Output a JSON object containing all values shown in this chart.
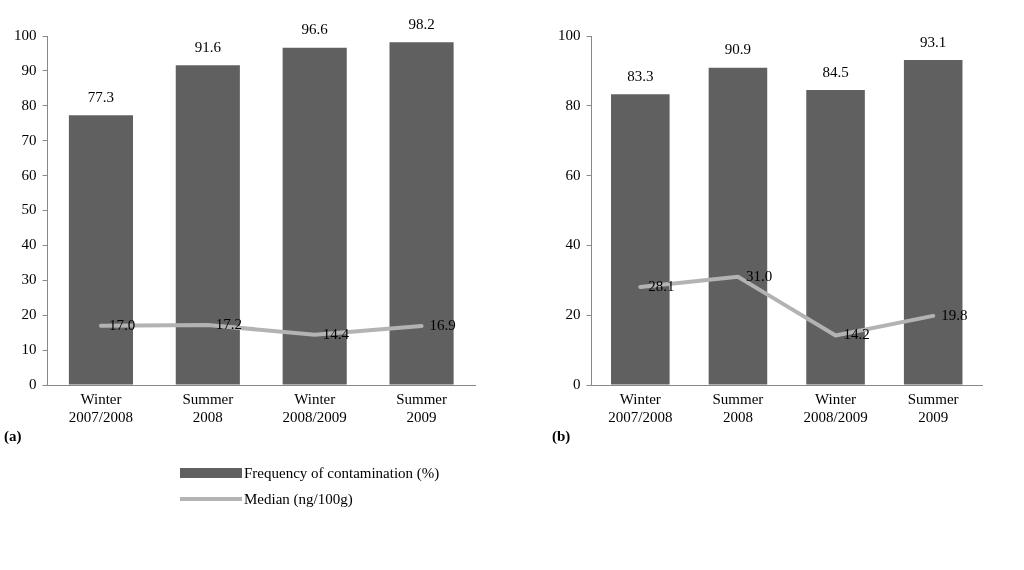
{
  "chart_data": [
    {
      "type": "bar",
      "annotations": [
        "(a)"
      ],
      "categories": [
        "Winter 2007/2008",
        "Summer 2008",
        "Winter 2008/2009",
        "Summer 2009"
      ],
      "series": [
        {
          "name": "Frequency of contamination (%)",
          "color": "#606060",
          "values": [
            77.3,
            91.6,
            96.6,
            98.2
          ],
          "value_labels": [
            "77.3",
            "91.6",
            "96.6",
            "98.2"
          ]
        },
        {
          "name": "Median (ng/100g)",
          "type": "line",
          "color": "#b3b3b3",
          "values": [
            17.0,
            17.2,
            14.4,
            16.9
          ],
          "value_labels": [
            "17.0",
            "17.2",
            "14.4",
            "16.9"
          ]
        }
      ],
      "ylim": [
        0,
        100
      ],
      "yticks": [
        0,
        10,
        20,
        30,
        40,
        50,
        60,
        70,
        80,
        90,
        100
      ],
      "grid": false,
      "legend": "bottom",
      "marker": "none"
    },
    {
      "type": "bar",
      "annotations": [
        "(b)"
      ],
      "categories": [
        "Winter 2007/2008",
        "Summer 2008",
        "Winter 2008/2009",
        "Summer 2009"
      ],
      "series": [
        {
          "color": "#606060",
          "values": [
            83.3,
            90.9,
            84.5,
            93.1
          ],
          "value_labels": [
            "83.3",
            "90.9",
            "84.5",
            "93.1"
          ]
        },
        {
          "type": "line",
          "color": "#b3b3b3",
          "values": [
            28.1,
            31.0,
            14.2,
            19.8
          ],
          "value_labels": [
            "28.1",
            "31.0",
            "14.2",
            "19.8"
          ]
        }
      ],
      "ylim": [
        0,
        100
      ],
      "yticks": [
        0,
        20,
        40,
        60,
        80,
        100
      ],
      "grid": false,
      "legend": false,
      "marker": "none"
    }
  ]
}
